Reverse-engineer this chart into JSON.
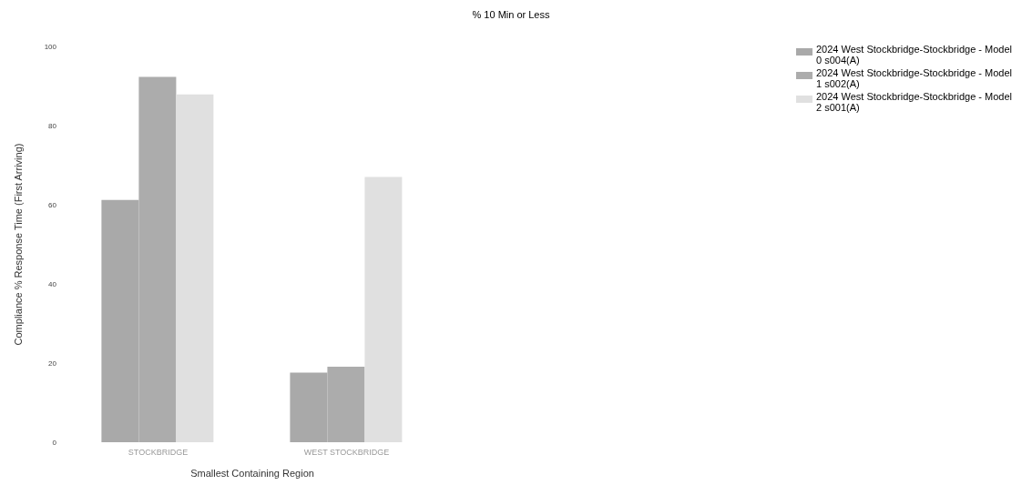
{
  "chart_data": {
    "type": "bar",
    "title": "% 10 Min or Less",
    "xlabel": "Smallest Containing Region",
    "ylabel": "Compliance % Response Time (First Arriving)",
    "categories": [
      "STOCKBRIDGE",
      "WEST STOCKBRIDGE"
    ],
    "series": [
      {
        "name": "2024 West Stockbridge-Stockbridge - Model 0 s004(A)",
        "color": "#a9a9a9",
        "values": [
          61.2,
          17.6
        ]
      },
      {
        "name": "2024 West Stockbridge-Stockbridge - Model 1 s002(A)",
        "color": "#acacac",
        "values": [
          92.3,
          19.1
        ]
      },
      {
        "name": "2024 West Stockbridge-Stockbridge - Model 2 s001(A)",
        "color": "#e0e0e0",
        "values": [
          87.9,
          67.0
        ]
      }
    ],
    "ylim": [
      0,
      100
    ],
    "yticks": [
      0,
      20,
      40,
      60,
      80,
      100
    ],
    "grid": false,
    "legend": "top right"
  }
}
